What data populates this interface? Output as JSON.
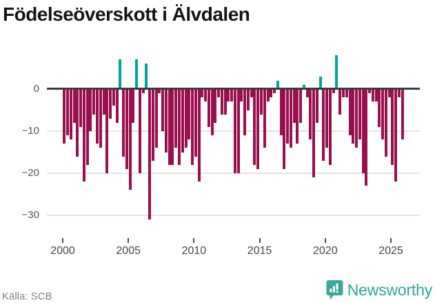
{
  "page": {
    "title": "Födelseöverskott i Älvdalen"
  },
  "footer": {
    "source": "Källa: SCB",
    "brand": "Newsworthy"
  },
  "colors": {
    "positive": "#00a39b",
    "negative": "#990f4f",
    "axis": "#3b3b3b",
    "grid": "#e4e4e4",
    "brand_teal": "#3aa79d"
  },
  "chart_data": {
    "type": "bar",
    "title": "Födelseöverskott i Älvdalen",
    "ylabel": "",
    "xlabel": "",
    "frequency": "quarterly",
    "start_period": "2000 Q1",
    "end_period": "2025 Q4",
    "grid": "horizontal",
    "legend": "none",
    "ylim": [
      -34.5,
      9.7
    ],
    "y_ticks": [
      0,
      -10,
      -20,
      -30
    ],
    "y_tick_labels": [
      "0",
      "−10",
      "−20",
      "−30"
    ],
    "x_tick_years": [
      2000,
      2005,
      2010,
      2015,
      2020,
      2025
    ],
    "x_tick_labels": [
      "2000",
      "2005",
      "2010",
      "2015",
      "2020",
      "2025"
    ],
    "values": [
      -13,
      -11,
      -12,
      -8,
      -16,
      -9,
      -22,
      -18,
      -10,
      -6,
      -13,
      -14,
      -6,
      -20,
      -7,
      -4,
      -8,
      7,
      -16,
      -19,
      -24,
      -8,
      7,
      -20,
      -1,
      6,
      -31,
      -17,
      -14,
      -1,
      -10,
      -15,
      -18,
      -18,
      -14,
      -18,
      -15,
      -14,
      -12,
      -18,
      -16,
      -22,
      -2,
      -3,
      -9,
      -11,
      -8,
      -2,
      -6,
      -6,
      -3,
      -3,
      -20,
      -20,
      -3,
      -11,
      -5,
      -2,
      -18,
      -19,
      -6,
      -14,
      -3,
      -2,
      -1,
      2,
      -11,
      -19,
      -13,
      -14,
      -8,
      -13,
      -8,
      1,
      -2,
      -12,
      -21,
      -8,
      3,
      -17,
      -14,
      -18,
      -1,
      8,
      -6,
      -2,
      -2,
      -11,
      -13,
      -14,
      -12,
      -20,
      -23,
      -1,
      -3,
      -3,
      -9,
      -12,
      -16,
      -2,
      -18,
      -22,
      -2,
      -12
    ],
    "positive_color": "#00a39b",
    "negative_color": "#990f4f"
  }
}
